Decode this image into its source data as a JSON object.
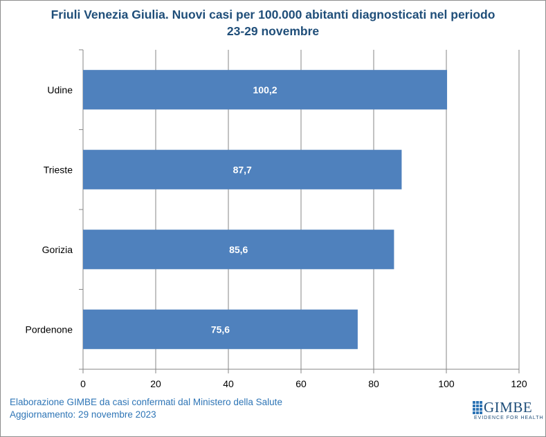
{
  "chart_data": {
    "type": "bar",
    "orientation": "horizontal",
    "title_line1": "Friuli Venezia Giulia. Nuovi casi per 100.000 abitanti diagnosticati nel periodo",
    "title_line2": "23-29 novembre",
    "categories": [
      "Udine",
      "Trieste",
      "Gorizia",
      "Pordenone"
    ],
    "values": [
      100.2,
      87.7,
      85.6,
      75.6
    ],
    "data_labels": [
      "100,2",
      "87,7",
      "85,6",
      "75,6"
    ],
    "xlim": [
      0,
      120
    ],
    "xticks": [
      0,
      20,
      40,
      60,
      80,
      100,
      120
    ],
    "grid": true,
    "bar_color": "#4f81bd",
    "legend": "none"
  },
  "footer": {
    "line1": "Elaborazione GIMBE da casi confermati dal Ministero della Salute",
    "line2": "Aggiornamento: 29 novembre 2023"
  },
  "logo": {
    "name": "GIMBE",
    "tagline": "EVIDENCE FOR HEALTH"
  },
  "colors": {
    "title": "#1f4e79",
    "footer": "#2e75b6",
    "grid": "#868686"
  }
}
